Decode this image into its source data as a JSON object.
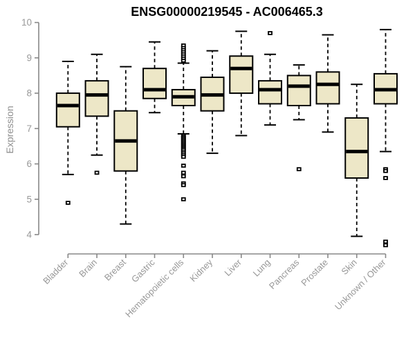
{
  "colors": {
    "box_fill": "#EDE7C7",
    "box_stroke": "#000000",
    "median_color": "#000000",
    "axis_color": "#878787",
    "tick_label_color": "#989898",
    "title_color": "#000000",
    "background": "#FFFFFF"
  },
  "chart_data": {
    "type": "boxplot",
    "title": "ENSG00000219545 - AC006465.3",
    "ylabel": "Expression",
    "xlabel": "",
    "ylim": [
      4,
      10
    ],
    "yticks": [
      4,
      5,
      6,
      7,
      8,
      9,
      10
    ],
    "grid": false,
    "legend": "none",
    "categories": [
      "Bladder",
      "Brain",
      "Breast",
      "Gastric",
      "Hematopoietic cells",
      "Kidney",
      "Liver",
      "Lung",
      "Pancreas",
      "Prostate",
      "Skin",
      "Unknown / Other"
    ],
    "boxes": [
      {
        "category": "Bladder",
        "whisker_low": 5.7,
        "q1": 7.05,
        "median": 7.65,
        "q3": 8.0,
        "whisker_high": 8.9,
        "outliers": [
          4.9
        ]
      },
      {
        "category": "Brain",
        "whisker_low": 6.25,
        "q1": 7.35,
        "median": 7.95,
        "q3": 8.35,
        "whisker_high": 9.1,
        "outliers": [
          5.75
        ]
      },
      {
        "category": "Breast",
        "whisker_low": 4.3,
        "q1": 5.8,
        "median": 6.65,
        "q3": 7.5,
        "whisker_high": 8.75,
        "outliers": []
      },
      {
        "category": "Gastric",
        "whisker_low": 7.45,
        "q1": 7.85,
        "median": 8.1,
        "q3": 8.7,
        "whisker_high": 9.45,
        "outliers": []
      },
      {
        "category": "Hematopoietic cells",
        "whisker_low": 6.85,
        "q1": 7.65,
        "median": 7.9,
        "q3": 8.1,
        "whisker_high": 8.85,
        "outliers": [
          9.35,
          9.28,
          9.22,
          9.16,
          9.1,
          9.04,
          8.98,
          8.92,
          6.8,
          6.76,
          6.72,
          6.68,
          6.64,
          6.6,
          6.56,
          6.52,
          6.48,
          6.44,
          6.4,
          6.35,
          6.3,
          6.25,
          6.2,
          5.95,
          5.75,
          5.65,
          5.45,
          5.4,
          5.0
        ]
      },
      {
        "category": "Kidney",
        "whisker_low": 6.3,
        "q1": 7.5,
        "median": 7.95,
        "q3": 8.45,
        "whisker_high": 9.2,
        "outliers": []
      },
      {
        "category": "Liver",
        "whisker_low": 6.8,
        "q1": 8.0,
        "median": 8.7,
        "q3": 9.05,
        "whisker_high": 9.75,
        "outliers": []
      },
      {
        "category": "Lung",
        "whisker_low": 7.1,
        "q1": 7.7,
        "median": 8.1,
        "q3": 8.35,
        "whisker_high": 9.1,
        "outliers": [
          9.7
        ]
      },
      {
        "category": "Pancreas",
        "whisker_low": 7.25,
        "q1": 7.65,
        "median": 8.2,
        "q3": 8.5,
        "whisker_high": 8.8,
        "outliers": [
          5.85
        ]
      },
      {
        "category": "Prostate",
        "whisker_low": 6.9,
        "q1": 7.7,
        "median": 8.25,
        "q3": 8.6,
        "whisker_high": 9.65,
        "outliers": []
      },
      {
        "category": "Skin",
        "whisker_low": 3.95,
        "q1": 5.6,
        "median": 6.35,
        "q3": 7.3,
        "whisker_high": 8.25,
        "outliers": []
      },
      {
        "category": "Unknown / Other",
        "whisker_low": 6.35,
        "q1": 7.7,
        "median": 8.1,
        "q3": 8.55,
        "whisker_high": 9.8,
        "outliers": [
          5.85,
          5.8,
          5.6,
          3.8,
          3.7
        ]
      }
    ]
  }
}
